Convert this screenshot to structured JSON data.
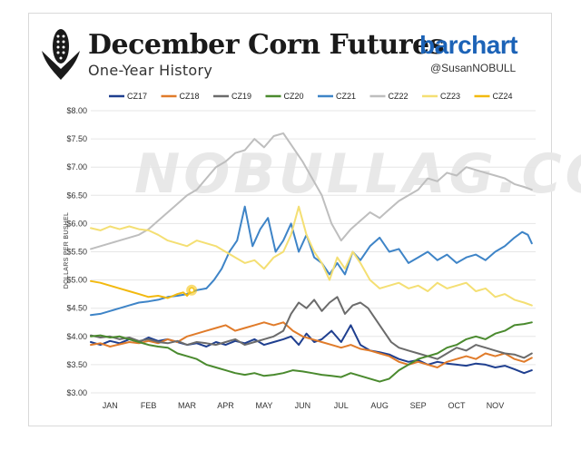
{
  "header": {
    "title": "December Corn Futures",
    "subtitle": "One-Year History",
    "brand": "barchart",
    "handle": "@SusanNOBULL",
    "watermark": "NOBULLAG.COM"
  },
  "colors": {
    "background": "#ffffff",
    "grid": "#e6e6e6",
    "brand": "#1c63b7",
    "marker": "#f5c518"
  },
  "chart_data": {
    "type": "line",
    "title": "December Corn Futures",
    "subtitle": "One-Year History",
    "ylabel": "DOLLARS PER BUSHEL",
    "xlabel": "",
    "ylim": [
      3.0,
      8.0
    ],
    "y_ticks": [
      3.0,
      3.5,
      4.0,
      4.5,
      5.0,
      5.5,
      6.0,
      6.5,
      7.0,
      7.5,
      8.0
    ],
    "y_tick_labels": [
      "$3.00",
      "$3.50",
      "$4.00",
      "$4.50",
      "$5.00",
      "$5.50",
      "$6.00",
      "$6.50",
      "$7.00",
      "$7.50",
      "$8.00"
    ],
    "x_tick_labels": [
      "JAN",
      "FEB",
      "MAR",
      "APR",
      "MAY",
      "JUN",
      "JUL",
      "AUG",
      "SEP",
      "OCT",
      "NOV"
    ],
    "x_tick_positions": [
      0.5,
      1.5,
      2.5,
      3.5,
      4.5,
      5.5,
      6.5,
      7.5,
      8.5,
      9.5,
      10.5
    ],
    "xlim": [
      0,
      11.55
    ],
    "grid": true,
    "legend_position": "top",
    "highlight": {
      "series": "CZ24",
      "x": 2.62,
      "y": 4.82
    },
    "series": [
      {
        "name": "CZ17",
        "color": "#1f3f8f",
        "x": [
          0,
          0.25,
          0.5,
          0.75,
          1,
          1.25,
          1.5,
          1.75,
          2,
          2.25,
          2.5,
          2.75,
          3,
          3.25,
          3.5,
          3.75,
          4,
          4.25,
          4.5,
          4.75,
          5,
          5.2,
          5.4,
          5.6,
          5.8,
          6,
          6.25,
          6.5,
          6.75,
          7,
          7.25,
          7.5,
          7.75,
          8,
          8.25,
          8.5,
          8.75,
          9,
          9.25,
          9.5,
          9.75,
          10,
          10.25,
          10.5,
          10.75,
          11,
          11.25,
          11.45
        ],
        "values": [
          3.9,
          3.85,
          3.92,
          3.88,
          3.95,
          3.9,
          3.98,
          3.92,
          3.95,
          3.9,
          3.85,
          3.88,
          3.82,
          3.9,
          3.85,
          3.92,
          3.88,
          3.95,
          3.85,
          3.9,
          3.95,
          4.0,
          3.85,
          4.05,
          3.9,
          3.95,
          4.1,
          3.9,
          4.2,
          3.85,
          3.75,
          3.72,
          3.68,
          3.6,
          3.55,
          3.58,
          3.5,
          3.55,
          3.52,
          3.5,
          3.48,
          3.52,
          3.5,
          3.45,
          3.48,
          3.42,
          3.35,
          3.4
        ]
      },
      {
        "name": "CZ18",
        "color": "#e07b2a",
        "x": [
          0,
          0.25,
          0.5,
          0.75,
          1,
          1.25,
          1.5,
          1.75,
          2,
          2.25,
          2.5,
          2.75,
          3,
          3.25,
          3.5,
          3.75,
          4,
          4.25,
          4.5,
          4.75,
          5,
          5.25,
          5.5,
          5.75,
          6,
          6.25,
          6.5,
          6.75,
          7,
          7.25,
          7.5,
          7.75,
          8,
          8.25,
          8.5,
          8.75,
          9,
          9.25,
          9.5,
          9.75,
          10,
          10.25,
          10.5,
          10.75,
          11,
          11.25,
          11.45
        ],
        "values": [
          3.85,
          3.88,
          3.82,
          3.86,
          3.9,
          3.88,
          3.92,
          3.88,
          3.95,
          3.9,
          4.0,
          4.05,
          4.1,
          4.15,
          4.2,
          4.1,
          4.15,
          4.2,
          4.25,
          4.2,
          4.25,
          4.1,
          4.0,
          3.95,
          3.9,
          3.85,
          3.8,
          3.85,
          3.78,
          3.75,
          3.7,
          3.65,
          3.55,
          3.5,
          3.55,
          3.5,
          3.45,
          3.55,
          3.6,
          3.65,
          3.6,
          3.7,
          3.65,
          3.7,
          3.6,
          3.55,
          3.62
        ]
      },
      {
        "name": "CZ19",
        "color": "#6b6b6b",
        "x": [
          0,
          0.25,
          0.5,
          0.75,
          1,
          1.25,
          1.5,
          1.75,
          2,
          2.25,
          2.5,
          2.75,
          3,
          3.25,
          3.5,
          3.75,
          4,
          4.25,
          4.5,
          4.75,
          5,
          5.2,
          5.4,
          5.6,
          5.8,
          6,
          6.2,
          6.4,
          6.6,
          6.8,
          7,
          7.2,
          7.4,
          7.6,
          7.8,
          8,
          8.25,
          8.5,
          8.75,
          9,
          9.25,
          9.5,
          9.75,
          10,
          10.25,
          10.5,
          10.75,
          11,
          11.25,
          11.45
        ],
        "values": [
          4.02,
          3.98,
          4.0,
          3.95,
          3.98,
          3.92,
          3.95,
          3.9,
          3.88,
          3.92,
          3.85,
          3.9,
          3.88,
          3.85,
          3.9,
          3.95,
          3.85,
          3.9,
          3.95,
          4.0,
          4.1,
          4.4,
          4.6,
          4.5,
          4.65,
          4.45,
          4.6,
          4.7,
          4.4,
          4.55,
          4.6,
          4.5,
          4.3,
          4.1,
          3.9,
          3.8,
          3.75,
          3.7,
          3.65,
          3.6,
          3.7,
          3.8,
          3.75,
          3.85,
          3.8,
          3.75,
          3.7,
          3.68,
          3.62,
          3.7
        ]
      },
      {
        "name": "CZ20",
        "color": "#4a8a2e",
        "x": [
          0,
          0.25,
          0.5,
          0.75,
          1,
          1.25,
          1.5,
          1.75,
          2,
          2.25,
          2.5,
          2.75,
          3,
          3.25,
          3.5,
          3.75,
          4,
          4.25,
          4.5,
          4.75,
          5,
          5.25,
          5.5,
          5.75,
          6,
          6.25,
          6.5,
          6.75,
          7,
          7.25,
          7.5,
          7.75,
          8,
          8.25,
          8.5,
          8.75,
          9,
          9.25,
          9.5,
          9.75,
          10,
          10.25,
          10.5,
          10.75,
          11,
          11.25,
          11.45
        ],
        "values": [
          4.0,
          4.02,
          3.98,
          4.0,
          3.95,
          3.9,
          3.85,
          3.82,
          3.8,
          3.7,
          3.65,
          3.6,
          3.5,
          3.45,
          3.4,
          3.35,
          3.32,
          3.35,
          3.3,
          3.32,
          3.35,
          3.4,
          3.38,
          3.35,
          3.32,
          3.3,
          3.28,
          3.35,
          3.3,
          3.25,
          3.2,
          3.25,
          3.4,
          3.5,
          3.6,
          3.65,
          3.7,
          3.8,
          3.85,
          3.95,
          4.0,
          3.95,
          4.05,
          4.1,
          4.2,
          4.22,
          4.25
        ]
      },
      {
        "name": "CZ21",
        "color": "#3e84c7",
        "x": [
          0,
          0.25,
          0.5,
          0.75,
          1,
          1.25,
          1.5,
          1.75,
          2,
          2.25,
          2.5,
          2.75,
          3,
          3.2,
          3.4,
          3.6,
          3.8,
          4,
          4.2,
          4.4,
          4.6,
          4.8,
          5,
          5.2,
          5.4,
          5.6,
          5.8,
          6,
          6.2,
          6.4,
          6.6,
          6.8,
          7,
          7.25,
          7.5,
          7.75,
          8,
          8.25,
          8.5,
          8.75,
          9,
          9.25,
          9.5,
          9.75,
          10,
          10.25,
          10.5,
          10.75,
          11,
          11.2,
          11.35,
          11.45
        ],
        "values": [
          4.38,
          4.4,
          4.45,
          4.5,
          4.55,
          4.6,
          4.62,
          4.65,
          4.7,
          4.72,
          4.75,
          4.82,
          4.85,
          5.0,
          5.2,
          5.5,
          5.7,
          6.3,
          5.6,
          5.9,
          6.1,
          5.5,
          5.7,
          6.0,
          5.5,
          5.8,
          5.4,
          5.3,
          5.1,
          5.3,
          5.1,
          5.5,
          5.35,
          5.6,
          5.75,
          5.5,
          5.55,
          5.3,
          5.4,
          5.5,
          5.35,
          5.45,
          5.3,
          5.4,
          5.45,
          5.35,
          5.5,
          5.6,
          5.75,
          5.85,
          5.8,
          5.65
        ]
      },
      {
        "name": "CZ22",
        "color": "#bebebe",
        "x": [
          0,
          0.25,
          0.5,
          0.75,
          1,
          1.25,
          1.5,
          1.75,
          2,
          2.25,
          2.5,
          2.75,
          3,
          3.25,
          3.5,
          3.75,
          4,
          4.25,
          4.5,
          4.75,
          5,
          5.25,
          5.5,
          5.75,
          6,
          6.25,
          6.5,
          6.75,
          7,
          7.25,
          7.5,
          7.75,
          8,
          8.25,
          8.5,
          8.75,
          9,
          9.25,
          9.5,
          9.75,
          10,
          10.25,
          10.5,
          10.75,
          11,
          11.25,
          11.45
        ],
        "values": [
          5.55,
          5.6,
          5.65,
          5.7,
          5.75,
          5.8,
          5.9,
          6.05,
          6.2,
          6.35,
          6.5,
          6.6,
          6.8,
          7.0,
          7.1,
          7.25,
          7.3,
          7.5,
          7.35,
          7.55,
          7.6,
          7.35,
          7.1,
          6.8,
          6.5,
          6.0,
          5.7,
          5.9,
          6.05,
          6.2,
          6.1,
          6.25,
          6.4,
          6.5,
          6.6,
          6.8,
          6.75,
          6.9,
          6.85,
          7.0,
          6.95,
          6.9,
          6.85,
          6.8,
          6.7,
          6.65,
          6.6
        ]
      },
      {
        "name": "CZ23",
        "color": "#f4df73",
        "x": [
          0,
          0.25,
          0.5,
          0.75,
          1,
          1.25,
          1.5,
          1.75,
          2,
          2.25,
          2.5,
          2.75,
          3,
          3.25,
          3.5,
          3.75,
          4,
          4.25,
          4.5,
          4.75,
          5,
          5.2,
          5.4,
          5.6,
          5.8,
          6,
          6.2,
          6.4,
          6.6,
          6.8,
          7,
          7.25,
          7.5,
          7.75,
          8,
          8.25,
          8.5,
          8.75,
          9,
          9.25,
          9.5,
          9.75,
          10,
          10.25,
          10.5,
          10.75,
          11,
          11.25,
          11.45
        ],
        "values": [
          5.92,
          5.88,
          5.95,
          5.9,
          5.95,
          5.9,
          5.88,
          5.8,
          5.7,
          5.65,
          5.6,
          5.7,
          5.65,
          5.6,
          5.5,
          5.4,
          5.3,
          5.35,
          5.2,
          5.4,
          5.5,
          5.8,
          6.3,
          5.8,
          5.5,
          5.3,
          5.0,
          5.4,
          5.2,
          5.5,
          5.3,
          5.0,
          4.85,
          4.9,
          4.95,
          4.85,
          4.9,
          4.8,
          4.95,
          4.85,
          4.9,
          4.95,
          4.8,
          4.85,
          4.7,
          4.75,
          4.65,
          4.6,
          4.55
        ]
      },
      {
        "name": "CZ24",
        "color": "#f2b90f",
        "x": [
          0,
          0.25,
          0.5,
          0.75,
          1,
          1.25,
          1.5,
          1.75,
          2,
          2.25,
          2.4,
          2.5,
          2.62
        ],
        "values": [
          4.98,
          4.95,
          4.9,
          4.85,
          4.8,
          4.75,
          4.7,
          4.72,
          4.68,
          4.75,
          4.78,
          4.72,
          4.82
        ]
      }
    ]
  }
}
